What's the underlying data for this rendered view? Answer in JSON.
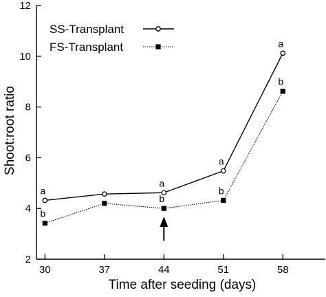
{
  "chart_data": {
    "type": "line",
    "title": "",
    "xlabel": "Time after seeding (days)",
    "ylabel": "Shoot:root ratio",
    "x": [
      30,
      37,
      44,
      51,
      58
    ],
    "x_ticks": [
      "30",
      "37",
      "44",
      "51",
      "58"
    ],
    "xlim": [
      29,
      63
    ],
    "y_ticks": [
      "2",
      "4",
      "6",
      "8",
      "10",
      "12"
    ],
    "ylim": [
      2,
      12
    ],
    "grid": false,
    "legend_position": "top-right",
    "series": [
      {
        "name": "SS-Transplant",
        "marker": "open-circle",
        "line_style": "solid",
        "color": "#000000",
        "values": [
          4.32,
          4.57,
          4.62,
          5.48,
          10.12
        ],
        "point_labels": [
          "a",
          "",
          "a",
          "a",
          "a"
        ]
      },
      {
        "name": "FS-Transplant",
        "marker": "filled-square",
        "line_style": "dotted",
        "color": "#000000",
        "values": [
          3.42,
          4.2,
          4.0,
          4.32,
          8.62
        ],
        "point_labels": [
          "b",
          "",
          "b",
          "b",
          "b"
        ]
      }
    ],
    "annotations": [
      {
        "type": "arrow",
        "direction": "up",
        "x": 44
      }
    ]
  }
}
